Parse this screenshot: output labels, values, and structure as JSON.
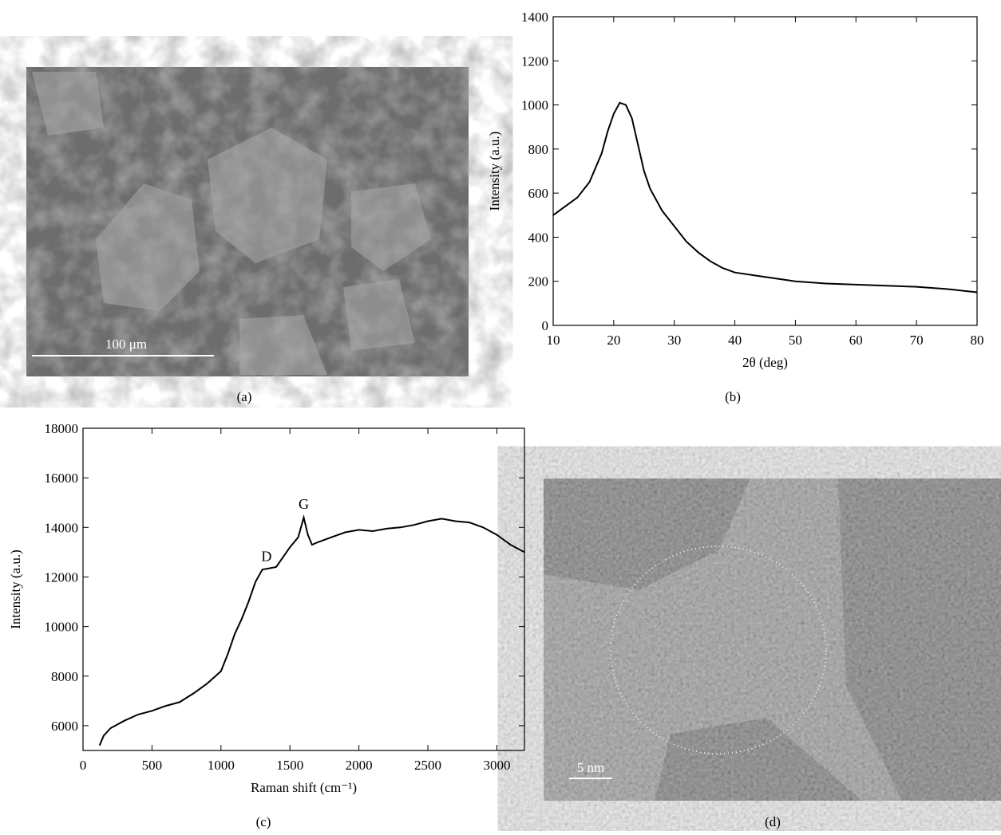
{
  "chart_data": [
    {
      "type": "line",
      "caption": "(b)",
      "y_label": "Intensity (a.u.)",
      "x_label": "2θ (deg)",
      "color": "#000000",
      "x": [
        10,
        12,
        14,
        16,
        18,
        19,
        20,
        21,
        22,
        23,
        24,
        25,
        26,
        28,
        30,
        32,
        34,
        36,
        38,
        40,
        45,
        50,
        55,
        60,
        65,
        70,
        75,
        80
      ],
      "values": [
        500,
        540,
        580,
        650,
        780,
        880,
        960,
        1010,
        1000,
        940,
        820,
        700,
        620,
        520,
        450,
        380,
        330,
        290,
        260,
        240,
        220,
        200,
        190,
        185,
        180,
        175,
        165,
        150
      ],
      "xlim": [
        10,
        80
      ],
      "xticks": [
        10,
        20,
        30,
        40,
        50,
        60,
        70,
        80
      ],
      "ylim": [
        0,
        1400
      ],
      "yticks": [
        0,
        200,
        400,
        600,
        800,
        1000,
        1200,
        1400
      ]
    },
    {
      "type": "line",
      "caption": "(c)",
      "y_label": "Intensity (a.u.)",
      "x_label": "Raman shift (cm⁻¹)",
      "color": "#000000",
      "annotations": [
        "D",
        "G"
      ],
      "x": [
        120,
        150,
        200,
        300,
        400,
        500,
        600,
        700,
        800,
        900,
        1000,
        1050,
        1100,
        1150,
        1200,
        1250,
        1300,
        1350,
        1400,
        1450,
        1500,
        1560,
        1600,
        1630,
        1660,
        1700,
        1800,
        1900,
        2000,
        2100,
        2200,
        2300,
        2400,
        2500,
        2600,
        2700,
        2800,
        2900,
        3000,
        3100,
        3200
      ],
      "values": [
        5200,
        5600,
        5900,
        6200,
        6450,
        6600,
        6800,
        6950,
        7300,
        7700,
        8200,
        8900,
        9700,
        10300,
        11000,
        11800,
        12300,
        12350,
        12400,
        12800,
        13200,
        13600,
        14400,
        13700,
        13300,
        13400,
        13600,
        13800,
        13900,
        13850,
        13950,
        14000,
        14100,
        14250,
        14350,
        14250,
        14200,
        14000,
        13700,
        13300,
        13000
      ],
      "xlim": [
        0,
        3200
      ],
      "xticks": [
        0,
        500,
        1000,
        1500,
        2000,
        2500,
        3000
      ],
      "ylim": [
        5000,
        18000
      ],
      "yticks": [
        6000,
        8000,
        10000,
        12000,
        14000,
        16000,
        18000
      ]
    }
  ],
  "images": [
    {
      "caption": "(a)",
      "scale_bar": "100 μm"
    },
    {
      "caption": "(d)",
      "scale_bar": "5 nm"
    }
  ]
}
